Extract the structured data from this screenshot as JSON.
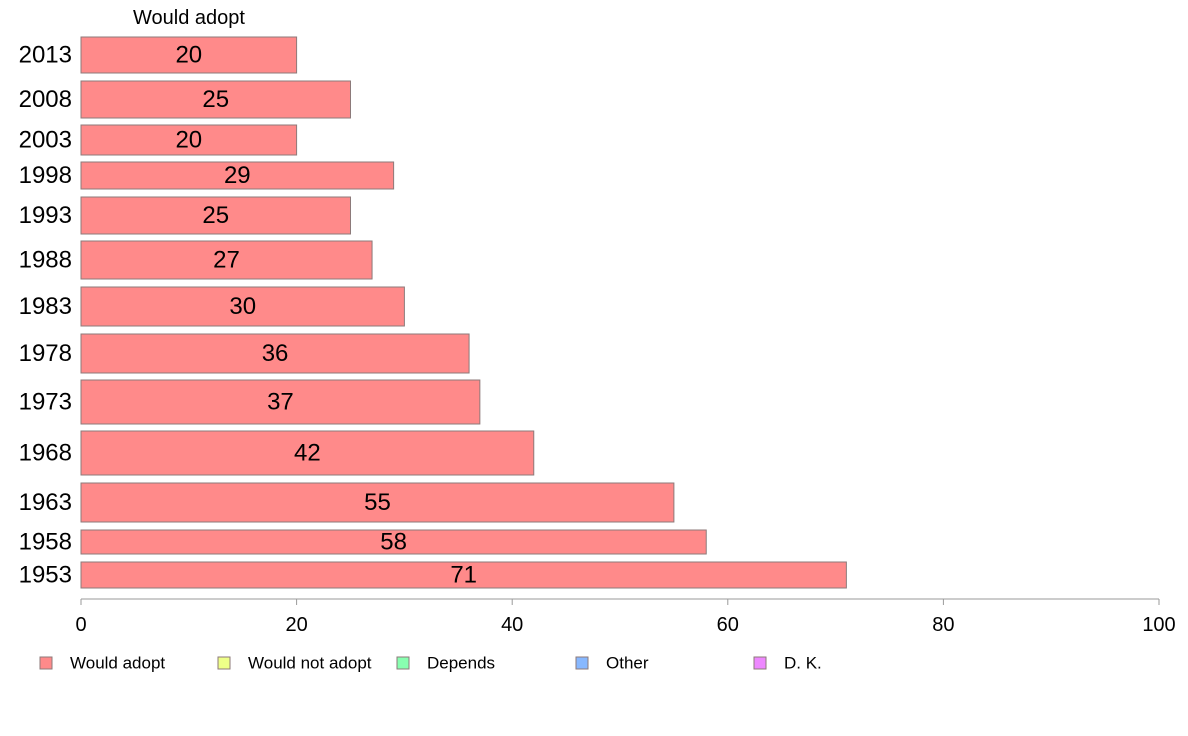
{
  "chart_data": {
    "type": "bar",
    "orientation": "horizontal",
    "stacked": true,
    "column_header": "Would adopt",
    "categories": [
      "2013",
      "2008",
      "2003",
      "1998",
      "1993",
      "1988",
      "1983",
      "1978",
      "1973",
      "1968",
      "1963",
      "1958",
      "1953"
    ],
    "series": [
      {
        "name": "Would adopt",
        "color": "#ff8a8a",
        "values": [
          20,
          25,
          20,
          29,
          25,
          27,
          30,
          36,
          37,
          42,
          55,
          58,
          71
        ]
      }
    ],
    "xlim": [
      0,
      100
    ],
    "xticks": [
      "0",
      "20",
      "40",
      "60",
      "80",
      "100"
    ],
    "legend": {
      "position": "bottom",
      "items": [
        {
          "label": "Would adopt",
          "color": "#ff8a8a"
        },
        {
          "label": "Would not adopt",
          "color": "#eeff88"
        },
        {
          "label": "Depends",
          "color": "#88ffb0"
        },
        {
          "label": "Other",
          "color": "#88b8ff"
        },
        {
          "label": "D. K.",
          "color": "#ee88ff"
        }
      ]
    }
  }
}
